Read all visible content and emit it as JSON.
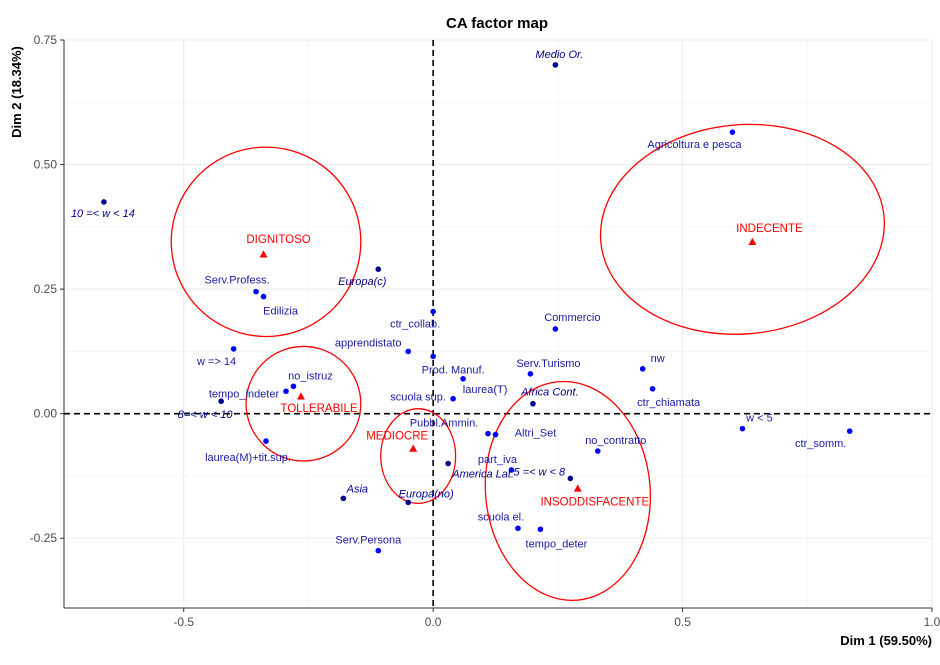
{
  "chart_data": {
    "type": "scatter",
    "title": "CA factor map",
    "xlabel": "Dim 1 (59.50%)",
    "ylabel": "Dim 2 (18.34%)",
    "xlim": [
      -0.74,
      1.0
    ],
    "ylim": [
      -0.39,
      0.75
    ],
    "x_ticks": [
      -0.5,
      0.0,
      0.5,
      1.0
    ],
    "x_tick_labels": [
      "-0.5",
      "0.0",
      "0.5",
      "1.0"
    ],
    "y_ticks": [
      -0.25,
      0.0,
      0.25,
      0.5,
      0.75
    ],
    "y_tick_labels": [
      "-0.25",
      "0.00",
      "0.25",
      "0.50",
      "0.75"
    ],
    "grid": true,
    "reference_lines": [
      0,
      0
    ],
    "colors": {
      "active_rows": "#0000ff",
      "supplementary_rows": "#00008b",
      "columns": "#ff0000",
      "label_blue": "#1a1aa6",
      "label_navy": "#00008b",
      "label_red": "#ff0000",
      "grid": "#ebebeb"
    },
    "row_points": [
      {
        "label": "Medio Or.",
        "x": 0.245,
        "y": 0.7,
        "supplementary": true,
        "dx": 4,
        "dy": -7,
        "anchor": "middle"
      },
      {
        "label": "Agricoltura e pesca",
        "x": 0.6,
        "y": 0.565,
        "supplementary": false,
        "dx": -38,
        "dy": 16,
        "anchor": "middle"
      },
      {
        "label": "10 =< w < 14",
        "x": -0.66,
        "y": 0.425,
        "supplementary": true,
        "dx": -1,
        "dy": 15,
        "anchor": "middle"
      },
      {
        "label": "Europa(c)",
        "x": -0.11,
        "y": 0.29,
        "supplementary": true,
        "dx": -16,
        "dy": 16,
        "anchor": "middle"
      },
      {
        "label": "Serv.Profess.",
        "x": -0.355,
        "y": 0.245,
        "supplementary": false,
        "dx": -19,
        "dy": -8,
        "anchor": "middle"
      },
      {
        "label": "Edilizia",
        "x": -0.34,
        "y": 0.235,
        "supplementary": false,
        "dx": 17,
        "dy": 18,
        "anchor": "middle"
      },
      {
        "label": "ctr_collab.",
        "x": 0.0,
        "y": 0.205,
        "supplementary": false,
        "dx": -18,
        "dy": 16,
        "anchor": "middle"
      },
      {
        "label": "Commercio",
        "x": 0.245,
        "y": 0.17,
        "supplementary": false,
        "dx": 17,
        "dy": -8,
        "anchor": "middle"
      },
      {
        "label": "apprendistato",
        "x": -0.05,
        "y": 0.125,
        "supplementary": false,
        "dx": -40,
        "dy": -5,
        "anchor": "middle"
      },
      {
        "label": "w => 14",
        "x": -0.4,
        "y": 0.13,
        "supplementary": false,
        "dx": -17,
        "dy": 16,
        "anchor": "middle"
      },
      {
        "label": "Prod. Manuf.",
        "x": 0.0,
        "y": 0.115,
        "supplementary": false,
        "dx": 20,
        "dy": 17,
        "anchor": "middle"
      },
      {
        "label": "nw",
        "x": 0.42,
        "y": 0.09,
        "supplementary": false,
        "dx": 15,
        "dy": -7,
        "anchor": "middle"
      },
      {
        "label": "Serv.Turismo",
        "x": 0.195,
        "y": 0.08,
        "supplementary": false,
        "dx": 18,
        "dy": -7,
        "anchor": "middle"
      },
      {
        "label": "laurea(T)",
        "x": 0.06,
        "y": 0.07,
        "supplementary": false,
        "dx": 22,
        "dy": 14,
        "anchor": "middle"
      },
      {
        "label": "no_istruz",
        "x": -0.28,
        "y": 0.055,
        "supplementary": false,
        "dx": 17,
        "dy": -7,
        "anchor": "middle"
      },
      {
        "label": "ctr_chiamata",
        "x": 0.44,
        "y": 0.05,
        "supplementary": false,
        "dx": 16,
        "dy": 17,
        "anchor": "middle"
      },
      {
        "label": "tempo_indeter",
        "x": -0.295,
        "y": 0.045,
        "supplementary": false,
        "dx": -42,
        "dy": 6,
        "anchor": "middle"
      },
      {
        "label": "scuola sup.",
        "x": 0.04,
        "y": 0.03,
        "supplementary": false,
        "dx": -35,
        "dy": 2,
        "anchor": "middle"
      },
      {
        "label": "Africa Cont.",
        "x": 0.2,
        "y": 0.02,
        "supplementary": true,
        "dx": 17,
        "dy": -8,
        "anchor": "middle"
      },
      {
        "label": "8=< w < 10",
        "x": -0.425,
        "y": 0.025,
        "supplementary": true,
        "dx": -16,
        "dy": 17,
        "anchor": "middle"
      },
      {
        "label": "w < 5",
        "x": 0.62,
        "y": -0.03,
        "supplementary": false,
        "dx": 17,
        "dy": -7,
        "anchor": "middle"
      },
      {
        "label": "ctr_somm.",
        "x": 0.835,
        "y": -0.035,
        "supplementary": false,
        "dx": -29,
        "dy": 16,
        "anchor": "middle"
      },
      {
        "label": "Pubbl.Ammin.",
        "x": 0.11,
        "y": -0.04,
        "supplementary": false,
        "dx": -44,
        "dy": -7,
        "anchor": "middle"
      },
      {
        "label": "Altri_Set",
        "x": 0.125,
        "y": -0.042,
        "supplementary": false,
        "dx": 40,
        "dy": 2,
        "anchor": "middle"
      },
      {
        "label": "laurea(M)+tit.sup.",
        "x": -0.335,
        "y": -0.055,
        "supplementary": false,
        "dx": -18,
        "dy": 20,
        "anchor": "middle"
      },
      {
        "label": "no_contratto",
        "x": 0.33,
        "y": -0.075,
        "supplementary": false,
        "dx": 18,
        "dy": -7,
        "anchor": "middle"
      },
      {
        "label": "America Lat.",
        "x": 0.03,
        "y": -0.1,
        "supplementary": true,
        "dx": 35,
        "dy": 14,
        "anchor": "middle"
      },
      {
        "label": "part_iva",
        "x": 0.157,
        "y": -0.113,
        "supplementary": false,
        "dx": -14,
        "dy": -7,
        "anchor": "middle"
      },
      {
        "label": "5 =< w < 8",
        "x": 0.275,
        "y": -0.13,
        "supplementary": true,
        "dx": -31,
        "dy": -3,
        "anchor": "middle"
      },
      {
        "label": "Asia",
        "x": -0.18,
        "y": -0.17,
        "supplementary": true,
        "dx": 14,
        "dy": -6,
        "anchor": "middle"
      },
      {
        "label": "Europa(no)",
        "x": -0.05,
        "y": -0.178,
        "supplementary": true,
        "dx": 18,
        "dy": -5,
        "anchor": "middle"
      },
      {
        "label": "scuola el.",
        "x": 0.17,
        "y": -0.23,
        "supplementary": false,
        "dx": -17,
        "dy": -8,
        "anchor": "middle"
      },
      {
        "label": "tempo_deter",
        "x": 0.215,
        "y": -0.232,
        "supplementary": false,
        "dx": 16,
        "dy": 18,
        "anchor": "middle"
      },
      {
        "label": "Serv.Persona",
        "x": -0.11,
        "y": -0.275,
        "supplementary": false,
        "dx": -10,
        "dy": -7,
        "anchor": "middle"
      }
    ],
    "column_points": [
      {
        "label": "DIGNITOSO",
        "x": -0.34,
        "y": 0.32,
        "dx": 15,
        "dy": -11
      },
      {
        "label": "INDECENTE",
        "x": 0.64,
        "y": 0.345,
        "dx": 17,
        "dy": -10
      },
      {
        "label": "TOLLERABILE",
        "x": -0.265,
        "y": 0.035,
        "dx": 18,
        "dy": 16
      },
      {
        "label": "MEDIOCRE",
        "x": -0.04,
        "y": -0.07,
        "dx": -16,
        "dy": -9
      },
      {
        "label": "INSODDISFACENTE",
        "x": 0.29,
        "y": -0.15,
        "dx": 17,
        "dy": 17
      }
    ],
    "confidence_ellipses": [
      {
        "for": "DIGNITOSO",
        "cx": -0.335,
        "cy": 0.345,
        "rx": 0.19,
        "ry": 0.19,
        "angle": 15
      },
      {
        "for": "INDECENTE",
        "cx": 0.62,
        "cy": 0.37,
        "rx": 0.285,
        "ry": 0.21,
        "angle": -5
      },
      {
        "for": "TOLLERABILE",
        "cx": -0.26,
        "cy": 0.02,
        "rx": 0.115,
        "ry": 0.115,
        "angle": 0
      },
      {
        "for": "MEDIOCRE",
        "cx": -0.03,
        "cy": -0.085,
        "rx": 0.075,
        "ry": 0.095,
        "angle": 0
      },
      {
        "for": "INSODDISFACENTE",
        "cx": 0.27,
        "cy": -0.155,
        "rx": 0.165,
        "ry": 0.22,
        "angle": -5
      }
    ]
  }
}
